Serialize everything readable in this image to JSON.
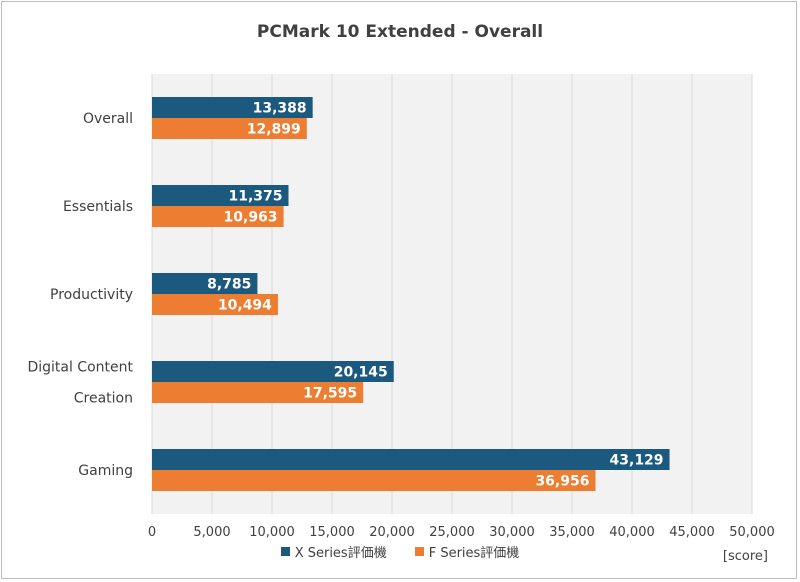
{
  "chart_data": {
    "type": "bar",
    "orientation": "horizontal",
    "title": "PCMark 10 Extended - Overall",
    "categories": [
      "Overall",
      "Essentials",
      "Productivity",
      "Digital Content Creation",
      "Gaming"
    ],
    "category_lines": [
      [
        "Overall"
      ],
      [
        "Essentials"
      ],
      [
        "Productivity"
      ],
      [
        "Digital Content",
        "Creation"
      ],
      [
        "Gaming"
      ]
    ],
    "series": [
      {
        "name": "X Series評価機",
        "color": "#1b5a7e",
        "values": [
          13388,
          11375,
          8785,
          20145,
          43129
        ],
        "labels": [
          "13,388",
          "11,375",
          "8,785",
          "20,145",
          "43,129"
        ]
      },
      {
        "name": "F Series評価機",
        "color": "#ed7d31",
        "values": [
          12899,
          10963,
          10494,
          17595,
          36956
        ],
        "labels": [
          "12,899",
          "10,963",
          "10,494",
          "17,595",
          "36,956"
        ]
      }
    ],
    "xlim": [
      0,
      50000
    ],
    "xticks": [
      0,
      5000,
      10000,
      15000,
      20000,
      25000,
      30000,
      35000,
      40000,
      45000,
      50000
    ],
    "xtick_labels": [
      "0",
      "5,000",
      "10,000",
      "15,000",
      "20,000",
      "25,000",
      "30,000",
      "35,000",
      "40,000",
      "45,000",
      "50,000"
    ],
    "xlabel": "[score]",
    "grid": true,
    "legend_position": "bottom"
  }
}
